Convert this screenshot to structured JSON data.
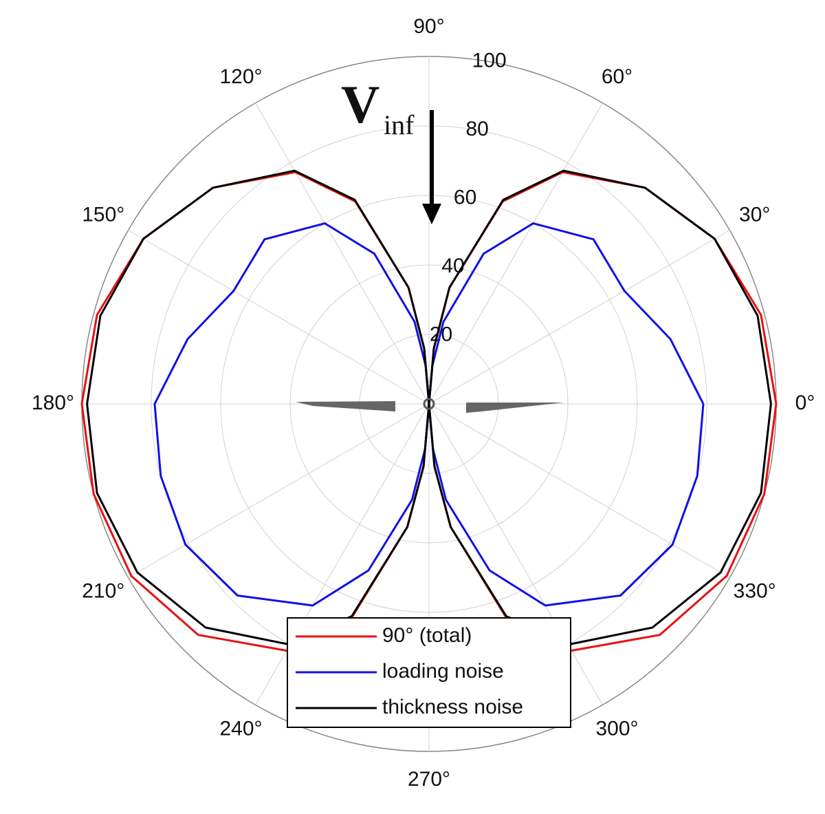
{
  "chart_data": {
    "type": "polar",
    "annotation": {
      "main": "V",
      "sub": "inf"
    },
    "theta": [
      0,
      15,
      30,
      45,
      60,
      70,
      80,
      85,
      90,
      95,
      100,
      110,
      120,
      135,
      150,
      165,
      180,
      195,
      210,
      225,
      240,
      250,
      260,
      265,
      270,
      275,
      280,
      290,
      300,
      315,
      330,
      345,
      360
    ],
    "series": [
      {
        "name": "90° (total)",
        "color": "#e81010",
        "values": [
          100,
          99,
          95,
          88,
          77,
          62,
          34,
          16,
          0,
          16,
          34,
          62,
          77,
          88,
          95,
          99,
          100,
          100,
          99,
          94,
          82,
          66,
          36,
          18,
          0,
          18,
          36,
          66,
          82,
          94,
          99,
          100,
          100
        ]
      },
      {
        "name": "loading noise",
        "color": "#1010e8",
        "values": [
          79,
          72,
          65,
          67,
          60,
          46,
          24,
          11,
          0,
          11,
          24,
          46,
          60,
          67,
          65,
          72,
          79,
          80,
          81,
          78,
          67,
          51,
          28,
          13,
          0,
          13,
          28,
          51,
          67,
          78,
          81,
          80,
          79
        ]
      },
      {
        "name": "thickness noise",
        "color": "#000000",
        "values": [
          98.5,
          98,
          95,
          88,
          77.5,
          62.5,
          34,
          16,
          0,
          16,
          34,
          62.5,
          77.5,
          88,
          95,
          98,
          98.5,
          99,
          97,
          91,
          80,
          65,
          36,
          18,
          0,
          18,
          36,
          65,
          80,
          91,
          97,
          99,
          98.5
        ]
      }
    ],
    "rlim": [
      0,
      100
    ],
    "rticks": [
      20,
      40,
      60,
      80,
      100
    ],
    "thetaticks": [
      {
        "value": 0,
        "label": "0°"
      },
      {
        "value": 30,
        "label": "30°"
      },
      {
        "value": 60,
        "label": "60°"
      },
      {
        "value": 90,
        "label": "90°"
      },
      {
        "value": 120,
        "label": "120°"
      },
      {
        "value": 150,
        "label": "150°"
      },
      {
        "value": 180,
        "label": "180°"
      },
      {
        "value": 210,
        "label": "210°"
      },
      {
        "value": 240,
        "label": "240°"
      },
      {
        "value": 270,
        "label": "270°"
      },
      {
        "value": 300,
        "label": "300°"
      },
      {
        "value": 330,
        "label": "330°"
      }
    ],
    "grid": true,
    "legend": "bottom"
  }
}
